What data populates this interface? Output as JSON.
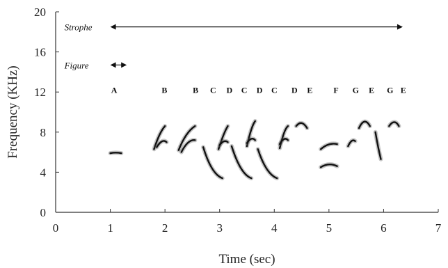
{
  "chart_data": {
    "type": "scatter",
    "title": "",
    "xlabel": "Time (sec)",
    "ylabel": "Frequency (KHz)",
    "xlim": [
      0,
      7
    ],
    "ylim": [
      0,
      20
    ],
    "xticks": [
      "0",
      "1",
      "2",
      "3",
      "4",
      "5",
      "6",
      "7"
    ],
    "yticks": [
      "0",
      "4",
      "8",
      "12",
      "16",
      "20"
    ],
    "grid": false,
    "annotations": [
      {
        "label": "Strophe",
        "x_start": 1.0,
        "x_end": 6.35,
        "y": 18.5
      },
      {
        "label": "Figure",
        "x_start": 1.0,
        "x_end": 1.3,
        "y": 14.7
      }
    ],
    "segment_labels": [
      {
        "label": "A",
        "x": 1.07
      },
      {
        "label": "B",
        "x": 1.99
      },
      {
        "label": "B",
        "x": 2.56
      },
      {
        "label": "C",
        "x": 2.88
      },
      {
        "label": "D",
        "x": 3.18
      },
      {
        "label": "C",
        "x": 3.45
      },
      {
        "label": "D",
        "x": 3.73
      },
      {
        "label": "C",
        "x": 4.0
      },
      {
        "label": "D",
        "x": 4.37
      },
      {
        "label": "E",
        "x": 4.65
      },
      {
        "label": "F",
        "x": 5.13
      },
      {
        "label": "G",
        "x": 5.49
      },
      {
        "label": "E",
        "x": 5.78
      },
      {
        "label": "G",
        "x": 6.12
      },
      {
        "label": "E",
        "x": 6.36
      }
    ],
    "segment_label_y": 11.9,
    "syllables": [
      {
        "x": [
          1.0,
          1.1,
          1.2
        ],
        "y": [
          5.9,
          6.0,
          5.9
        ]
      },
      {
        "x": [
          1.8,
          1.9,
          2.0
        ],
        "y": [
          6.3,
          8.0,
          8.6
        ]
      },
      {
        "x": [
          1.85,
          1.95,
          2.03
        ],
        "y": [
          6.5,
          7.4,
          7.0
        ]
      },
      {
        "x": [
          2.25,
          2.38,
          2.55
        ],
        "y": [
          6.2,
          8.0,
          8.6
        ]
      },
      {
        "x": [
          2.3,
          2.42,
          2.55
        ],
        "y": [
          6.0,
          7.3,
          7.2
        ]
      },
      {
        "x": [
          2.7,
          2.85,
          3.05
        ],
        "y": [
          6.5,
          3.8,
          3.4
        ]
      },
      {
        "x": [
          2.98,
          3.08,
          3.15
        ],
        "y": [
          6.3,
          8.0,
          8.6
        ]
      },
      {
        "x": [
          3.0,
          3.08,
          3.15
        ],
        "y": [
          6.7,
          7.3,
          7.0
        ]
      },
      {
        "x": [
          3.22,
          3.38,
          3.58
        ],
        "y": [
          6.6,
          3.8,
          3.4
        ]
      },
      {
        "x": [
          3.5,
          3.58,
          3.65
        ],
        "y": [
          6.6,
          8.6,
          9.1
        ]
      },
      {
        "x": [
          3.5,
          3.58,
          3.65
        ],
        "y": [
          6.9,
          7.6,
          7.2
        ]
      },
      {
        "x": [
          3.7,
          3.85,
          4.05
        ],
        "y": [
          6.3,
          3.8,
          3.4
        ]
      },
      {
        "x": [
          4.1,
          4.18,
          4.25
        ],
        "y": [
          6.4,
          8.3,
          8.6
        ]
      },
      {
        "x": [
          4.1,
          4.18,
          4.25
        ],
        "y": [
          6.8,
          7.6,
          7.2
        ]
      },
      {
        "x": [
          4.4,
          4.5,
          4.6
        ],
        "y": [
          8.6,
          9.3,
          8.4
        ]
      },
      {
        "x": [
          4.85,
          5.0,
          5.15
        ],
        "y": [
          4.5,
          5.0,
          4.6
        ]
      },
      {
        "x": [
          4.85,
          5.0,
          5.15
        ],
        "y": [
          6.3,
          7.0,
          6.8
        ]
      },
      {
        "x": [
          5.35,
          5.42,
          5.48
        ],
        "y": [
          6.6,
          7.4,
          7.1
        ]
      },
      {
        "x": [
          5.55,
          5.65,
          5.75
        ],
        "y": [
          8.4,
          9.6,
          8.6
        ]
      },
      {
        "x": [
          5.85,
          5.9,
          5.95
        ],
        "y": [
          8.0,
          6.4,
          5.3
        ]
      },
      {
        "x": [
          6.1,
          6.2,
          6.28
        ],
        "y": [
          8.6,
          9.4,
          8.6
        ]
      }
    ]
  }
}
